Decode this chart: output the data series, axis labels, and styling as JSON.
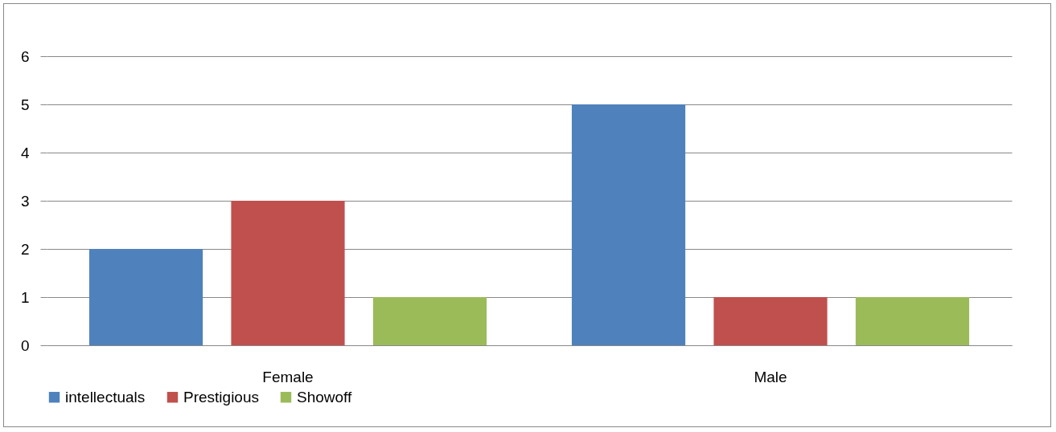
{
  "chart_data": {
    "type": "bar",
    "categories": [
      "Female",
      "Male"
    ],
    "series": [
      {
        "name": "intellectuals",
        "color": "#4f81bd",
        "values": [
          2,
          5
        ]
      },
      {
        "name": "Prestigious",
        "color": "#c0504d",
        "values": [
          3,
          1
        ]
      },
      {
        "name": "Showoff",
        "color": "#9bbb59",
        "values": [
          1,
          1
        ]
      }
    ],
    "ylim": [
      0,
      6
    ],
    "yticks": [
      0,
      1,
      2,
      3,
      4,
      5,
      6
    ],
    "grid": "y",
    "legend": "bottom"
  }
}
